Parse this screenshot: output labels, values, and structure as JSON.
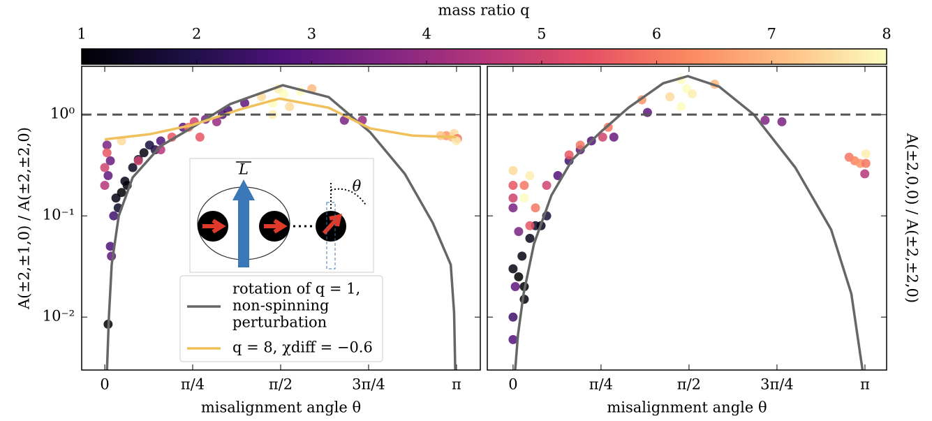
{
  "colorbar": {
    "label": "mass ratio q",
    "lim": [
      1,
      8
    ],
    "ticks": [
      1,
      2,
      3,
      4,
      5,
      6,
      7,
      8
    ],
    "colormap": "magma"
  },
  "inset": {
    "L_label": "L",
    "theta_label": "θ"
  },
  "chart_data": [
    {
      "type": "scatter",
      "xlabel": "misalignment angle θ",
      "ylabel": "A(±2,±1,0) / A(±2,±2,0)",
      "log_y": true,
      "hline": 1,
      "xlim": [
        -0.206,
        3.354
      ],
      "ylim": [
        0.003,
        3
      ],
      "xticks": [
        {
          "value": 0,
          "label": "0"
        },
        {
          "value": 0.7854,
          "label": "π/4"
        },
        {
          "value": 1.5708,
          "label": "π/2"
        },
        {
          "value": 2.3562,
          "label": "3π/4"
        },
        {
          "value": 3.1416,
          "label": "π"
        }
      ],
      "yticks": [
        {
          "value": 0.01,
          "label": "10⁻²"
        },
        {
          "value": 0.1,
          "label": "10⁻¹"
        },
        {
          "value": 1,
          "label": "10⁰"
        }
      ],
      "x": [
        0.03,
        0.1,
        0.12,
        0.15,
        0.18,
        0.2,
        0.25,
        0.3,
        0.35,
        0.4,
        0.45,
        0.05,
        0.06,
        0.08,
        0.03,
        0.05,
        0.5,
        0.7,
        0.9,
        1.05,
        1.1,
        0.02,
        0.0,
        0.0,
        0.02,
        0.3,
        0.5,
        0.6,
        0.75,
        0.8,
        0.85,
        1.0,
        2.3,
        0.15,
        1.4,
        1.5,
        1.55,
        1.6,
        1.65,
        1.75,
        1.85,
        1.5,
        3.05,
        3.1,
        3.12,
        3.15,
        3.0,
        3.14,
        2.14,
        1.25
      ],
      "y": [
        0.0085,
        0.15,
        0.12,
        0.17,
        0.22,
        0.2,
        0.3,
        0.36,
        0.42,
        0.5,
        0.45,
        0.05,
        0.04,
        0.1,
        0.25,
        0.35,
        0.55,
        0.75,
        0.9,
        1.0,
        1.1,
        0.5,
        0.3,
        0.2,
        0.42,
        0.35,
        0.45,
        0.6,
        0.75,
        0.85,
        0.6,
        0.85,
        0.88,
        0.55,
        1.5,
        1.3,
        1.8,
        1.6,
        1.2,
        1.7,
        1.8,
        1.0,
        0.62,
        0.6,
        0.65,
        0.58,
        0.62,
        0.55,
        0.88,
        1.3
      ],
      "q": [
        1,
        1.2,
        1.5,
        1,
        1.2,
        1.1,
        1.3,
        1.5,
        1.2,
        1.8,
        2,
        2.7,
        3,
        2.5,
        3,
        3.2,
        2.8,
        3,
        3.5,
        3,
        2.6,
        3.5,
        5,
        4.5,
        5.5,
        5,
        4.5,
        5.5,
        6,
        5,
        5.5,
        4,
        4,
        7.5,
        7.5,
        8,
        7.8,
        8,
        7.5,
        8,
        7,
        7.8,
        6.5,
        7,
        7.5,
        6,
        7.2,
        7.8,
        3.5,
        3
      ],
      "lines": [
        {
          "name": [
            "rotation of q = 1,",
            "non-spinning",
            "perturbation"
          ],
          "color": "#666666",
          "x": [
            0.02,
            0.037,
            0.062,
            0.125,
            0.25,
            0.5,
            0.785,
            1.12,
            1.59,
            2.0,
            2.37,
            2.68,
            2.93,
            3.09,
            3.12,
            3.13
          ],
          "y": [
            0.003,
            0.01,
            0.033,
            0.1,
            0.24,
            0.49,
            0.75,
            1.27,
            1.95,
            1.49,
            0.67,
            0.26,
            0.085,
            0.033,
            0.011,
            0.003
          ]
        },
        {
          "name": [
            "q = 8, χdiff = −0.6"
          ],
          "color": "#f0c05a",
          "x": [
            0.0,
            0.4,
            0.785,
            1.2,
            1.56,
            2.0,
            2.37,
            2.75,
            3.14
          ],
          "y": [
            0.57,
            0.64,
            0.79,
            1.12,
            1.44,
            1.17,
            0.73,
            0.62,
            0.6
          ]
        }
      ]
    },
    {
      "type": "scatter",
      "xlabel": "misalignment angle θ",
      "ylabel": "A(±2,0,0) / A(±2,±2,0)",
      "log_y": true,
      "hline": 1,
      "show_ytick_labels": false,
      "xlim": [
        -0.23,
        3.335
      ],
      "ylim": [
        0.003,
        3
      ],
      "xticks": [
        {
          "value": 0,
          "label": "0"
        },
        {
          "value": 0.7854,
          "label": "π/4"
        },
        {
          "value": 1.5708,
          "label": "π/2"
        },
        {
          "value": 2.3562,
          "label": "3π/4"
        },
        {
          "value": 3.1416,
          "label": "π"
        }
      ],
      "yticks": [
        0.01,
        0.1,
        1
      ],
      "x": [
        0.0,
        0.05,
        0.08,
        0.1,
        0.15,
        0.2,
        0.25,
        0.3,
        0.1,
        0.0,
        0.0,
        0.02,
        0.0,
        0.4,
        0.5,
        0.6,
        0.7,
        0.9,
        1.2,
        0.05,
        2.4,
        2.25,
        0.0,
        0.0,
        0.1,
        0.15,
        0.2,
        0.3,
        0.5,
        0.6,
        0.8,
        0.85,
        3.0,
        3.05,
        3.1,
        3.15,
        3.14,
        0.0,
        0.15,
        0.1,
        1.4,
        1.5,
        1.55,
        1.6,
        1.5,
        1.8,
        1.15,
        3.15
      ],
      "y": [
        0.03,
        0.025,
        0.04,
        0.02,
        0.06,
        0.08,
        0.08,
        0.1,
        0.015,
        0.01,
        0.006,
        0.02,
        0.12,
        0.25,
        0.35,
        0.45,
        0.55,
        0.6,
        1.05,
        0.07,
        0.85,
        0.88,
        0.2,
        0.15,
        0.2,
        0.08,
        0.12,
        0.2,
        0.4,
        0.5,
        0.6,
        0.75,
        0.38,
        0.35,
        0.33,
        0.33,
        0.26,
        0.28,
        0.25,
        0.15,
        1.5,
        1.2,
        1.8,
        1.6,
        2.2,
        2.0,
        1.4,
        0.41
      ],
      "q": [
        1.2,
        1,
        1.2,
        1,
        1.3,
        1.5,
        1.3,
        1.8,
        1.1,
        2.5,
        2.8,
        3,
        3.5,
        2.8,
        2.5,
        3,
        2.8,
        3.2,
        3,
        3.5,
        3.5,
        3.6,
        5.5,
        5,
        6,
        5.5,
        6,
        5,
        5.5,
        6,
        5,
        6,
        6,
        6.2,
        6.5,
        6,
        4.5,
        7.5,
        7.8,
        8,
        7.5,
        8,
        8,
        7.8,
        8,
        7,
        6.5,
        7.8
      ],
      "lines": [
        {
          "color": "#666666",
          "x": [
            0.019,
            0.044,
            0.094,
            0.187,
            0.343,
            0.53,
            0.78,
            1.03,
            1.34,
            1.56,
            1.84,
            2.15,
            2.52,
            2.84,
            3.02,
            3.12
          ],
          "y": [
            0.003,
            0.0067,
            0.017,
            0.053,
            0.16,
            0.36,
            0.67,
            1.17,
            2.04,
            2.4,
            1.89,
            1.0,
            0.3,
            0.073,
            0.017,
            0.003
          ]
        }
      ]
    }
  ]
}
